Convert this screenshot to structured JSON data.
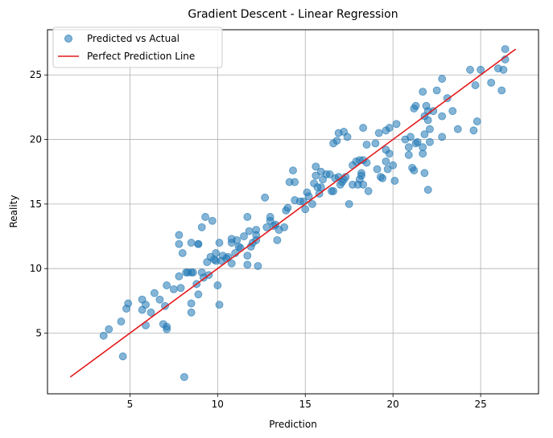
{
  "chart_data": {
    "type": "scatter",
    "title": "Gradient Descent - Linear Regression",
    "xlabel": "Prediction",
    "ylabel": "Reality",
    "xlim": [
      0.3,
      28.3
    ],
    "ylim": [
      0.3,
      28.5
    ],
    "xticks": [
      5,
      10,
      15,
      20,
      25
    ],
    "yticks": [
      5,
      10,
      15,
      20,
      25
    ],
    "grid": true,
    "legend_position": "top-left",
    "series": [
      {
        "name": "Predicted vs Actual",
        "kind": "scatter",
        "color": "#1f77b4",
        "points": [
          [
            3.5,
            4.8
          ],
          [
            3.8,
            5.3
          ],
          [
            4.5,
            5.9
          ],
          [
            4.6,
            3.2
          ],
          [
            4.8,
            6.9
          ],
          [
            4.9,
            7.3
          ],
          [
            5.7,
            6.8
          ],
          [
            5.7,
            7.6
          ],
          [
            5.9,
            7.2
          ],
          [
            5.9,
            5.6
          ],
          [
            6.2,
            6.6
          ],
          [
            6.4,
            8.1
          ],
          [
            6.7,
            7.6
          ],
          [
            6.9,
            5.7
          ],
          [
            7.0,
            7.1
          ],
          [
            7.1,
            5.3
          ],
          [
            7.1,
            5.5
          ],
          [
            7.1,
            8.7
          ],
          [
            7.5,
            8.4
          ],
          [
            7.8,
            9.4
          ],
          [
            7.8,
            12.6
          ],
          [
            7.8,
            11.9
          ],
          [
            7.9,
            8.5
          ],
          [
            8.0,
            11.2
          ],
          [
            8.1,
            1.6
          ],
          [
            8.2,
            9.7
          ],
          [
            8.5,
            6.6
          ],
          [
            8.5,
            7.3
          ],
          [
            8.5,
            9.7
          ],
          [
            8.5,
            12.0
          ],
          [
            8.3,
            9.7
          ],
          [
            8.6,
            9.7
          ],
          [
            8.8,
            8.8
          ],
          [
            8.9,
            8.0
          ],
          [
            8.9,
            11.9
          ],
          [
            8.9,
            11.9
          ],
          [
            9.1,
            13.2
          ],
          [
            9.1,
            9.7
          ],
          [
            9.2,
            9.3
          ],
          [
            9.3,
            14.0
          ],
          [
            9.4,
            10.5
          ],
          [
            9.5,
            9.5
          ],
          [
            9.6,
            10.9
          ],
          [
            9.7,
            13.7
          ],
          [
            9.8,
            10.7
          ],
          [
            9.9,
            11.2
          ],
          [
            9.9,
            10.6
          ],
          [
            10.0,
            8.7
          ],
          [
            10.1,
            7.2
          ],
          [
            10.1,
            12.0
          ],
          [
            10.2,
            10.6
          ],
          [
            10.3,
            11.0
          ],
          [
            10.5,
            10.8
          ],
          [
            10.6,
            10.9
          ],
          [
            10.8,
            12.0
          ],
          [
            10.8,
            12.3
          ],
          [
            10.8,
            10.4
          ],
          [
            11.0,
            11.2
          ],
          [
            11.1,
            12.2
          ],
          [
            11.2,
            11.7
          ],
          [
            11.3,
            11.6
          ],
          [
            11.5,
            12.5
          ],
          [
            11.7,
            11.0
          ],
          [
            11.7,
            10.3
          ],
          [
            11.7,
            14.0
          ],
          [
            11.8,
            12.9
          ],
          [
            11.9,
            11.7
          ],
          [
            12.0,
            12.0
          ],
          [
            12.2,
            12.2
          ],
          [
            12.2,
            12.6
          ],
          [
            12.2,
            13.0
          ],
          [
            12.3,
            10.2
          ],
          [
            12.7,
            15.5
          ],
          [
            12.8,
            13.2
          ],
          [
            13.0,
            13.7
          ],
          [
            13.0,
            14.0
          ],
          [
            13.2,
            13.3
          ],
          [
            13.3,
            13.4
          ],
          [
            13.4,
            12.2
          ],
          [
            13.5,
            13.0
          ],
          [
            13.8,
            13.2
          ],
          [
            13.9,
            14.5
          ],
          [
            14.0,
            14.7
          ],
          [
            14.1,
            16.7
          ],
          [
            14.3,
            17.6
          ],
          [
            14.4,
            15.3
          ],
          [
            14.4,
            16.7
          ],
          [
            14.7,
            15.2
          ],
          [
            14.9,
            15.2
          ],
          [
            15.0,
            14.6
          ],
          [
            15.1,
            15.9
          ],
          [
            15.2,
            15.6
          ],
          [
            15.4,
            15.0
          ],
          [
            15.5,
            16.6
          ],
          [
            15.6,
            17.2
          ],
          [
            15.6,
            17.9
          ],
          [
            15.7,
            16.3
          ],
          [
            15.8,
            15.8
          ],
          [
            15.9,
            16.3
          ],
          [
            15.9,
            17.5
          ],
          [
            16.0,
            16.9
          ],
          [
            16.2,
            17.3
          ],
          [
            16.4,
            17.3
          ],
          [
            16.5,
            16.0
          ],
          [
            16.6,
            16.0
          ],
          [
            16.6,
            19.7
          ],
          [
            16.7,
            17.0
          ],
          [
            16.8,
            19.9
          ],
          [
            16.9,
            20.5
          ],
          [
            16.9,
            17.1
          ],
          [
            17.0,
            16.5
          ],
          [
            17.1,
            16.7
          ],
          [
            17.2,
            20.6
          ],
          [
            17.2,
            16.9
          ],
          [
            17.3,
            17.1
          ],
          [
            17.4,
            20.2
          ],
          [
            17.5,
            15.0
          ],
          [
            17.7,
            18.0
          ],
          [
            17.7,
            16.5
          ],
          [
            17.9,
            18.3
          ],
          [
            18.0,
            16.5
          ],
          [
            18.1,
            16.9
          ],
          [
            18.1,
            18.4
          ],
          [
            18.2,
            17.2
          ],
          [
            18.2,
            17.4
          ],
          [
            18.3,
            16.5
          ],
          [
            18.3,
            18.4
          ],
          [
            18.3,
            20.9
          ],
          [
            18.5,
            19.6
          ],
          [
            18.5,
            18.2
          ],
          [
            18.6,
            16.0
          ],
          [
            19.0,
            19.7
          ],
          [
            19.2,
            20.5
          ],
          [
            19.1,
            17.7
          ],
          [
            19.3,
            17.1
          ],
          [
            19.4,
            17.0
          ],
          [
            19.6,
            18.3
          ],
          [
            19.6,
            20.7
          ],
          [
            19.6,
            19.2
          ],
          [
            19.7,
            17.7
          ],
          [
            19.8,
            20.9
          ],
          [
            19.8,
            18.9
          ],
          [
            20.0,
            18.0
          ],
          [
            20.1,
            16.8
          ],
          [
            20.2,
            21.2
          ],
          [
            20.7,
            20.0
          ],
          [
            20.9,
            19.4
          ],
          [
            20.9,
            18.8
          ],
          [
            21.0,
            20.2
          ],
          [
            21.1,
            17.8
          ],
          [
            21.2,
            17.6
          ],
          [
            21.2,
            22.4
          ],
          [
            21.3,
            22.6
          ],
          [
            21.3,
            19.7
          ],
          [
            21.4,
            19.8
          ],
          [
            21.7,
            19.4
          ],
          [
            21.7,
            18.9
          ],
          [
            21.7,
            23.7
          ],
          [
            21.8,
            20.4
          ],
          [
            21.8,
            21.8
          ],
          [
            21.8,
            17.4
          ],
          [
            22.0,
            21.5
          ],
          [
            22.0,
            22.2
          ],
          [
            22.0,
            16.1
          ],
          [
            22.1,
            19.8
          ],
          [
            22.1,
            20.8
          ],
          [
            22.3,
            22.2
          ],
          [
            22.5,
            23.8
          ],
          [
            22.8,
            24.7
          ],
          [
            22.8,
            21.8
          ],
          [
            22.8,
            20.2
          ],
          [
            23.1,
            23.2
          ],
          [
            23.4,
            22.2
          ],
          [
            23.7,
            20.8
          ],
          [
            24.4,
            25.4
          ],
          [
            24.6,
            20.7
          ],
          [
            24.7,
            24.2
          ],
          [
            24.8,
            21.4
          ],
          [
            25.0,
            25.4
          ],
          [
            25.6,
            24.4
          ],
          [
            26.0,
            25.5
          ],
          [
            26.2,
            23.8
          ],
          [
            26.3,
            25.4
          ],
          [
            26.4,
            26.2
          ],
          [
            26.4,
            27.0
          ],
          [
            21.9,
            22.6
          ]
        ]
      },
      {
        "name": "Perfect Prediction Line",
        "kind": "line",
        "color": "#e41a1c",
        "points": [
          [
            1.6,
            1.6
          ],
          [
            27.0,
            27.0
          ]
        ]
      }
    ]
  }
}
